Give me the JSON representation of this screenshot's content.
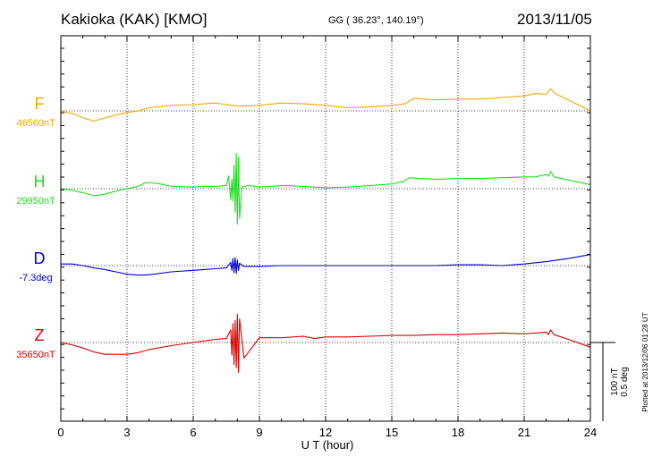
{
  "header": {
    "station": "Kakioka (KAK)  [KMO]",
    "coords": "GG ( 36.23°, 140.19°)",
    "date": "2013/11/05",
    "plotted": "Plotted at 2013/12/06 01:28 UT"
  },
  "chart_data": {
    "type": "line",
    "xlabel": "U T (hour)",
    "xlim": [
      0,
      24
    ],
    "xticks": [
      0,
      3,
      6,
      9,
      12,
      15,
      18,
      21,
      24
    ],
    "scale": {
      "label1": "100 nT",
      "label2": "0.5 deg"
    },
    "series": [
      {
        "name": "F",
        "baseline_label": "46560nT",
        "color": "#f0a800",
        "x": [
          0,
          0.6,
          1,
          1.5,
          2,
          2.5,
          3,
          3.5,
          4,
          5,
          6,
          7,
          7.5,
          8,
          9,
          10,
          11,
          12,
          13,
          14,
          15,
          15.6,
          16,
          17,
          18,
          19,
          20,
          21,
          21.5,
          22,
          22.2,
          22.4,
          23,
          24
        ],
        "y": [
          0,
          -4,
          -9,
          -13,
          -9,
          -5,
          -2,
          0,
          4,
          7,
          8,
          10,
          8,
          6,
          7,
          10,
          9,
          7,
          4,
          5,
          7,
          9,
          16,
          14,
          15,
          15,
          17,
          19,
          22,
          21,
          28,
          22,
          14,
          0
        ]
      },
      {
        "name": "H",
        "baseline_label": "29950nT",
        "color": "#22dd22",
        "x": [
          0,
          0.5,
          1,
          1.5,
          2,
          2.5,
          3,
          3.5,
          3.8,
          4,
          4.5,
          5,
          6,
          6.5,
          7,
          7.5,
          7.6,
          7.7,
          7.75,
          7.8,
          7.85,
          7.9,
          7.95,
          8,
          8.05,
          8.1,
          8.2,
          8.5,
          9,
          10,
          11,
          12,
          13,
          14,
          15,
          15.5,
          15.8,
          16.2,
          17,
          18,
          19,
          20,
          21,
          21.5,
          22,
          22.1,
          22.2,
          22.35,
          23,
          24
        ],
        "y": [
          0,
          -2,
          -5,
          -9,
          -7,
          -3,
          0,
          3,
          7,
          8,
          6,
          3,
          2,
          3,
          3,
          4,
          16,
          -14,
          12,
          -16,
          30,
          -30,
          45,
          -45,
          40,
          -38,
          2,
          4,
          2,
          4,
          3,
          1,
          2,
          4,
          6,
          9,
          14,
          13,
          12,
          13,
          13,
          14,
          15,
          15,
          18,
          16,
          22,
          15,
          11,
          5
        ]
      },
      {
        "name": "D",
        "baseline_label": "-7.3deg",
        "color": "#0000dd",
        "x": [
          0,
          0.5,
          1,
          1.5,
          2,
          2.5,
          3,
          3.5,
          3.8,
          4.2,
          5,
          6,
          6.5,
          7,
          7.5,
          7.7,
          7.75,
          7.8,
          7.85,
          7.9,
          7.95,
          8,
          8.05,
          8.1,
          8.3,
          9,
          10,
          11,
          12,
          13,
          14,
          15,
          16,
          17,
          18,
          19,
          20,
          21,
          22,
          23,
          24
        ],
        "y": [
          2,
          2,
          0,
          -3,
          -5,
          -8,
          -11,
          -12,
          -12,
          -11,
          -8,
          -6,
          -5,
          -4,
          -3,
          4,
          -6,
          9,
          -9,
          10,
          -10,
          7,
          -6,
          3,
          -1,
          -1,
          0,
          0,
          0,
          0,
          0,
          0,
          0,
          0,
          1,
          1,
          0,
          2,
          5,
          9,
          14
        ]
      },
      {
        "name": "Z",
        "baseline_label": "35650nT",
        "color": "#dd0000",
        "x": [
          0,
          0.5,
          1,
          1.5,
          2,
          2.5,
          3,
          3.5,
          4,
          5,
          6,
          7,
          7.5,
          7.7,
          7.75,
          7.8,
          7.85,
          7.9,
          7.95,
          8,
          8.05,
          8.1,
          8.3,
          9,
          10,
          11,
          11.5,
          12,
          13,
          14,
          15,
          16,
          17,
          18,
          19,
          20,
          21,
          21.5,
          22,
          22.1,
          22.2,
          22.35,
          23,
          24
        ],
        "y": [
          0,
          -3,
          -7,
          -12,
          -15,
          -15,
          -15,
          -13,
          -9,
          -4,
          0,
          4,
          5,
          16,
          -16,
          24,
          -28,
          28,
          -32,
          36,
          -38,
          30,
          -20,
          6,
          6,
          8,
          5,
          7,
          7,
          8,
          9,
          9,
          10,
          10,
          11,
          12,
          11,
          12,
          13,
          10,
          16,
          10,
          4,
          -6
        ]
      }
    ]
  }
}
